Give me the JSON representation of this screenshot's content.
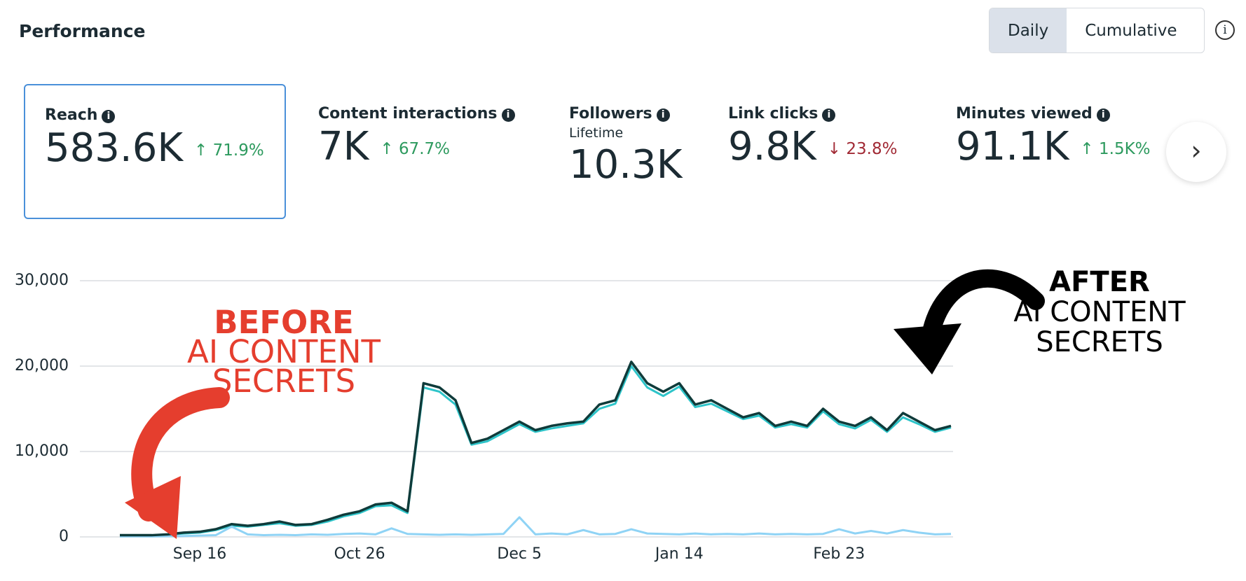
{
  "header": {
    "title": "Performance",
    "tabs": [
      {
        "label": "Daily",
        "active": true
      },
      {
        "label": "Cumulative",
        "active": false
      }
    ]
  },
  "metrics": [
    {
      "label": "Reach",
      "value": "583.6K",
      "change": "71.9%",
      "direction": "up",
      "selected": true
    },
    {
      "label": "Content interactions",
      "value": "7K",
      "change": "67.7%",
      "direction": "up"
    },
    {
      "label": "Followers",
      "sublabel": "Lifetime",
      "value": "10.3K"
    },
    {
      "label": "Link clicks",
      "value": "9.8K",
      "change": "23.8%",
      "direction": "down"
    },
    {
      "label": "Minutes viewed",
      "value": "91.1K",
      "change": "1.5K%",
      "direction": "up"
    }
  ],
  "chart_data": {
    "type": "line",
    "categories": [
      null,
      null,
      null,
      null,
      null,
      "Sep 16",
      null,
      null,
      null,
      null,
      null,
      null,
      null,
      null,
      null,
      "Oct 26",
      null,
      null,
      null,
      null,
      null,
      null,
      null,
      null,
      null,
      "Dec 5",
      null,
      null,
      null,
      null,
      null,
      null,
      null,
      null,
      null,
      "Jan 14",
      null,
      null,
      null,
      null,
      null,
      null,
      null,
      null,
      null,
      "Feb 23",
      null,
      null,
      null,
      null,
      null,
      null,
      null
    ],
    "series": [
      {
        "color": "#2ec4c9",
        "values": [
          150,
          150,
          150,
          250,
          400,
          500,
          800,
          1300,
          1200,
          1400,
          1600,
          1300,
          1400,
          1800,
          2400,
          2800,
          3600,
          3700,
          2800,
          17500,
          17000,
          15500,
          10800,
          11200,
          12200,
          13200,
          12300,
          12700,
          13000,
          13300,
          15000,
          15600,
          20000,
          17500,
          16500,
          17600,
          15200,
          15600,
          14700,
          13800,
          14200,
          12800,
          13200,
          12800,
          14700,
          13200,
          12700,
          13700,
          12300,
          14000,
          13200,
          12300,
          12800
        ]
      },
      {
        "color": "#8fd3f5",
        "values": [
          50,
          60,
          50,
          80,
          100,
          150,
          200,
          1200,
          300,
          200,
          250,
          200,
          300,
          250,
          350,
          400,
          300,
          1000,
          350,
          300,
          250,
          300,
          250,
          300,
          350,
          2300,
          300,
          400,
          300,
          800,
          300,
          350,
          900,
          400,
          350,
          300,
          400,
          300,
          350,
          300,
          400,
          300,
          350,
          300,
          350,
          900,
          400,
          700,
          400,
          800,
          500,
          300,
          350
        ]
      },
      {
        "color": "#0f3b3a",
        "values": [
          200,
          200,
          200,
          300,
          500,
          600,
          900,
          1500,
          1300,
          1500,
          1800,
          1400,
          1500,
          2000,
          2600,
          3000,
          3800,
          4000,
          3000,
          18000,
          17500,
          16000,
          11000,
          11500,
          12500,
          13500,
          12500,
          13000,
          13300,
          13500,
          15500,
          16000,
          20500,
          18000,
          17000,
          18000,
          15500,
          16000,
          15000,
          14000,
          14500,
          13000,
          13500,
          13000,
          15000,
          13500,
          13000,
          14000,
          12500,
          14500,
          13500,
          12500,
          13000
        ]
      }
    ],
    "ylim": [
      0,
      30000
    ],
    "yticks": [
      0,
      {
        "value": 10000,
        "label": "10,000"
      },
      {
        "value": 20000,
        "label": "20,000"
      },
      {
        "value": 30000,
        "label": "30,000"
      }
    ],
    "grid": true,
    "annotations": [
      {
        "lines": [
          "BEFORE",
          "AI CONTENT",
          "SECRETS"
        ],
        "color": "#e53e2e"
      },
      {
        "lines": [
          "AFTER",
          "AI CONTENT",
          "SECRETS"
        ],
        "color": "#000000"
      }
    ]
  }
}
